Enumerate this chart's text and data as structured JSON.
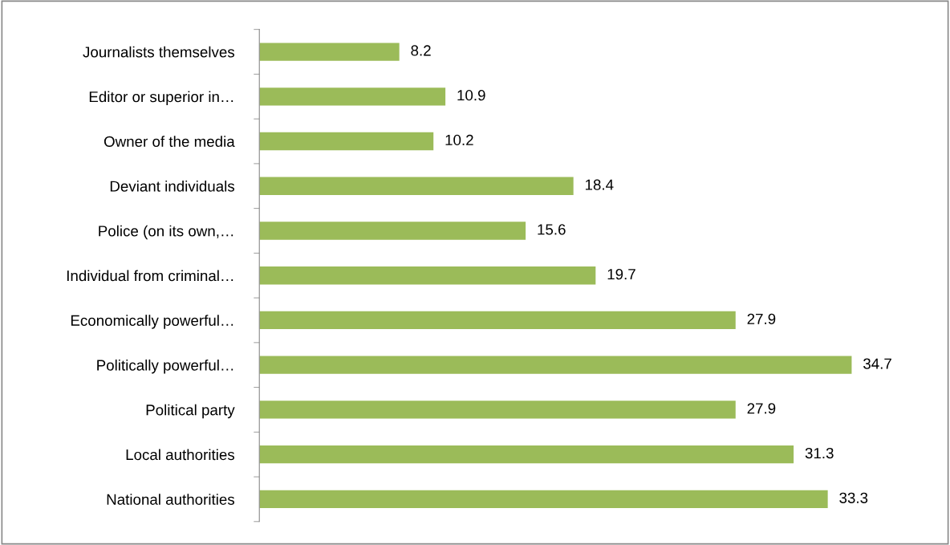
{
  "chart_data": {
    "type": "bar",
    "orientation": "horizontal",
    "categories": [
      "Journalists themselves",
      "Editor or superior in…",
      "Owner of the media",
      "Deviant individuals",
      "Police (on its own,…",
      "Individual from criminal…",
      "Economically powerful…",
      "Politically powerful…",
      "Political party",
      "Local authorities",
      "National authorities"
    ],
    "values": [
      8.2,
      10.9,
      10.2,
      18.4,
      15.6,
      19.7,
      27.9,
      34.7,
      27.9,
      31.3,
      33.3
    ],
    "color": "#9bbb59",
    "data_labels": true,
    "tick_labels": "y",
    "grid": false,
    "legend": false
  }
}
